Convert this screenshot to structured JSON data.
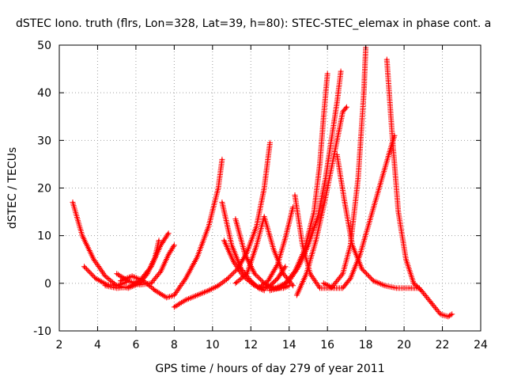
{
  "chart_data": {
    "type": "scatter",
    "title": "dSTEC Iono. truth (flrs, Lon=328, Lat=39, h=80): STEC-STEC_elemax in phase cont. a",
    "xlabel": "GPS time / hours of day 279 of year 2011",
    "ylabel": "dSTEC  / TECUs",
    "xlim": [
      2,
      24
    ],
    "ylim": [
      -10,
      50
    ],
    "xticks": [
      2,
      4,
      6,
      8,
      10,
      12,
      14,
      16,
      18,
      20,
      22,
      24
    ],
    "yticks": [
      -10,
      0,
      10,
      20,
      30,
      40,
      50
    ],
    "grid": true,
    "marker": "plus",
    "color": "#ff0000",
    "series": [
      {
        "x": [
          2.7,
          3.2,
          3.8,
          4.4,
          5.0,
          5.6,
          6.2,
          6.6,
          7.0,
          7.2
        ],
        "y": [
          17,
          10,
          5,
          1.5,
          -0.5,
          -1,
          0,
          2,
          5.5,
          9
        ]
      },
      {
        "x": [
          3.3,
          3.9,
          4.5,
          5.0,
          5.5
        ],
        "y": [
          3.5,
          1,
          -0.3,
          -0.5,
          0.2
        ]
      },
      {
        "x": [
          4.4,
          5.0,
          5.6,
          6.2,
          6.8,
          7.3,
          7.7
        ],
        "y": [
          -0.5,
          -1,
          -0.8,
          0.5,
          3.5,
          8,
          10.5
        ]
      },
      {
        "x": [
          5.0,
          5.6,
          6.2,
          6.8,
          7.3,
          7.7,
          8.0
        ],
        "y": [
          2,
          0.5,
          -0.3,
          0,
          2.5,
          6,
          8
        ]
      },
      {
        "x": [
          5.2,
          5.8,
          6.4,
          7.0,
          7.6,
          8.0,
          8.6,
          9.2,
          9.8,
          10.3,
          10.5
        ],
        "y": [
          0.5,
          1.5,
          0.5,
          -1.5,
          -3,
          -2.5,
          1,
          5.5,
          12,
          20,
          26
        ]
      },
      {
        "x": [
          8.0,
          8.6,
          9.2,
          9.8,
          10.3,
          10.8,
          11.3,
          11.8,
          12.3,
          12.7,
          13.0
        ],
        "y": [
          -5,
          -3.5,
          -2.5,
          -1.5,
          -0.5,
          1,
          3,
          6.5,
          12,
          20,
          29.5
        ]
      },
      {
        "x": [
          10.5,
          11.0,
          11.5,
          12.0,
          12.4,
          12.7
        ],
        "y": [
          17,
          8,
          3,
          0.5,
          -1,
          -1.5
        ]
      },
      {
        "x": [
          10.6,
          11.1,
          11.6,
          12.2,
          12.6,
          13.0,
          13.4,
          13.8
        ],
        "y": [
          9,
          4.5,
          1.5,
          -0.5,
          -1,
          -0.5,
          1,
          3.5
        ]
      },
      {
        "x": [
          11.2,
          11.7,
          12.2,
          12.7,
          13.2,
          13.7,
          14.0
        ],
        "y": [
          13.5,
          6,
          2,
          0,
          -1,
          -1,
          -0.5
        ]
      },
      {
        "x": [
          11.2,
          11.8,
          12.3,
          12.7,
          13.2,
          13.7,
          14.2
        ],
        "y": [
          0,
          2,
          8,
          14,
          7,
          2,
          -0.5
        ]
      },
      {
        "x": [
          12.4,
          12.9,
          13.4,
          13.8,
          14.2
        ],
        "y": [
          -1,
          0.5,
          4,
          9.5,
          16
        ]
      },
      {
        "x": [
          12.8,
          13.3,
          13.8,
          14.3,
          14.8,
          15.3,
          15.6,
          15.8,
          16.0
        ],
        "y": [
          -1,
          -1,
          0,
          2.5,
          7,
          15,
          25,
          35,
          44
        ]
      },
      {
        "x": [
          13.0,
          13.5,
          14.0,
          14.5,
          15.0,
          15.5,
          15.9,
          16.2,
          16.5,
          16.7
        ],
        "y": [
          -1.5,
          -1,
          0.5,
          3.5,
          8,
          14,
          22,
          30,
          38,
          44.5
        ]
      },
      {
        "x": [
          14.3,
          14.7,
          15.1,
          15.6,
          16.2,
          16.8,
          17.2,
          17.6,
          17.9,
          18.0
        ],
        "y": [
          18.5,
          8,
          2,
          -1,
          -1,
          2,
          8,
          22,
          40,
          49.5
        ]
      },
      {
        "x": [
          14.4,
          14.9,
          15.4,
          15.9,
          16.4,
          16.8,
          17.0
        ],
        "y": [
          -2.5,
          2,
          9,
          18,
          28,
          36,
          37
        ]
      },
      {
        "x": [
          15.8,
          16.3,
          16.8,
          17.2,
          17.7,
          18.2,
          18.7,
          19.2,
          19.5
        ],
        "y": [
          0,
          -1,
          -1,
          1,
          6,
          13,
          20,
          27,
          31
        ]
      },
      {
        "x": [
          16.5,
          16.9,
          17.3,
          17.8,
          18.4,
          19.0,
          19.6,
          20.3,
          20.8
        ],
        "y": [
          27,
          17,
          8,
          3,
          0.5,
          -0.5,
          -1,
          -1,
          -1
        ]
      },
      {
        "x": [
          19.1,
          19.4,
          19.7,
          20.1,
          20.5,
          20.9,
          21.4,
          21.9,
          22.3,
          22.5
        ],
        "y": [
          47,
          30,
          15,
          5,
          0,
          -1.5,
          -4,
          -6.5,
          -7,
          -6.5
        ]
      }
    ]
  }
}
